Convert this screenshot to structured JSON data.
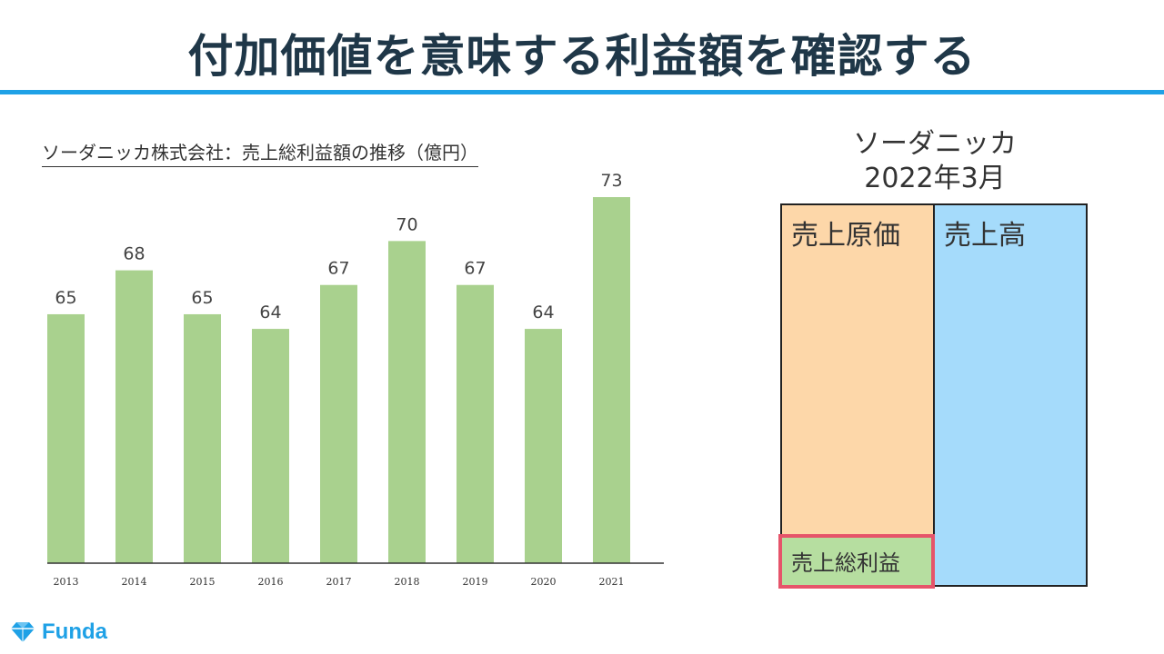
{
  "header": {
    "title": "付加価値を意味する利益額を確認する"
  },
  "chart_data": {
    "type": "bar",
    "title": "ソーダニッカ株式会社：売上総利益額の推移（億円）",
    "categories": [
      "2013",
      "2014",
      "2015",
      "2016",
      "2017",
      "2018",
      "2019",
      "2020",
      "2021"
    ],
    "values": [
      65,
      68,
      65,
      64,
      67,
      70,
      67,
      64,
      73
    ],
    "ylim": [
      48,
      73
    ],
    "bar_color": "#a9d18e",
    "grid": false,
    "data_labels": true
  },
  "breakdown": {
    "company": "ソーダニッカ",
    "period": "2022年3月",
    "cogs_label": "売上原価",
    "sales_label": "売上高",
    "gross_profit_label": "売上総利益",
    "colors": {
      "cogs": "#fdd7a9",
      "sales": "#a5dbfb",
      "gross_profit": "#b6dea0",
      "highlight": "#e6546a"
    }
  },
  "brand": {
    "name": "Funda",
    "icon": "diamond-logo-icon",
    "color": "#1fa1e6"
  }
}
